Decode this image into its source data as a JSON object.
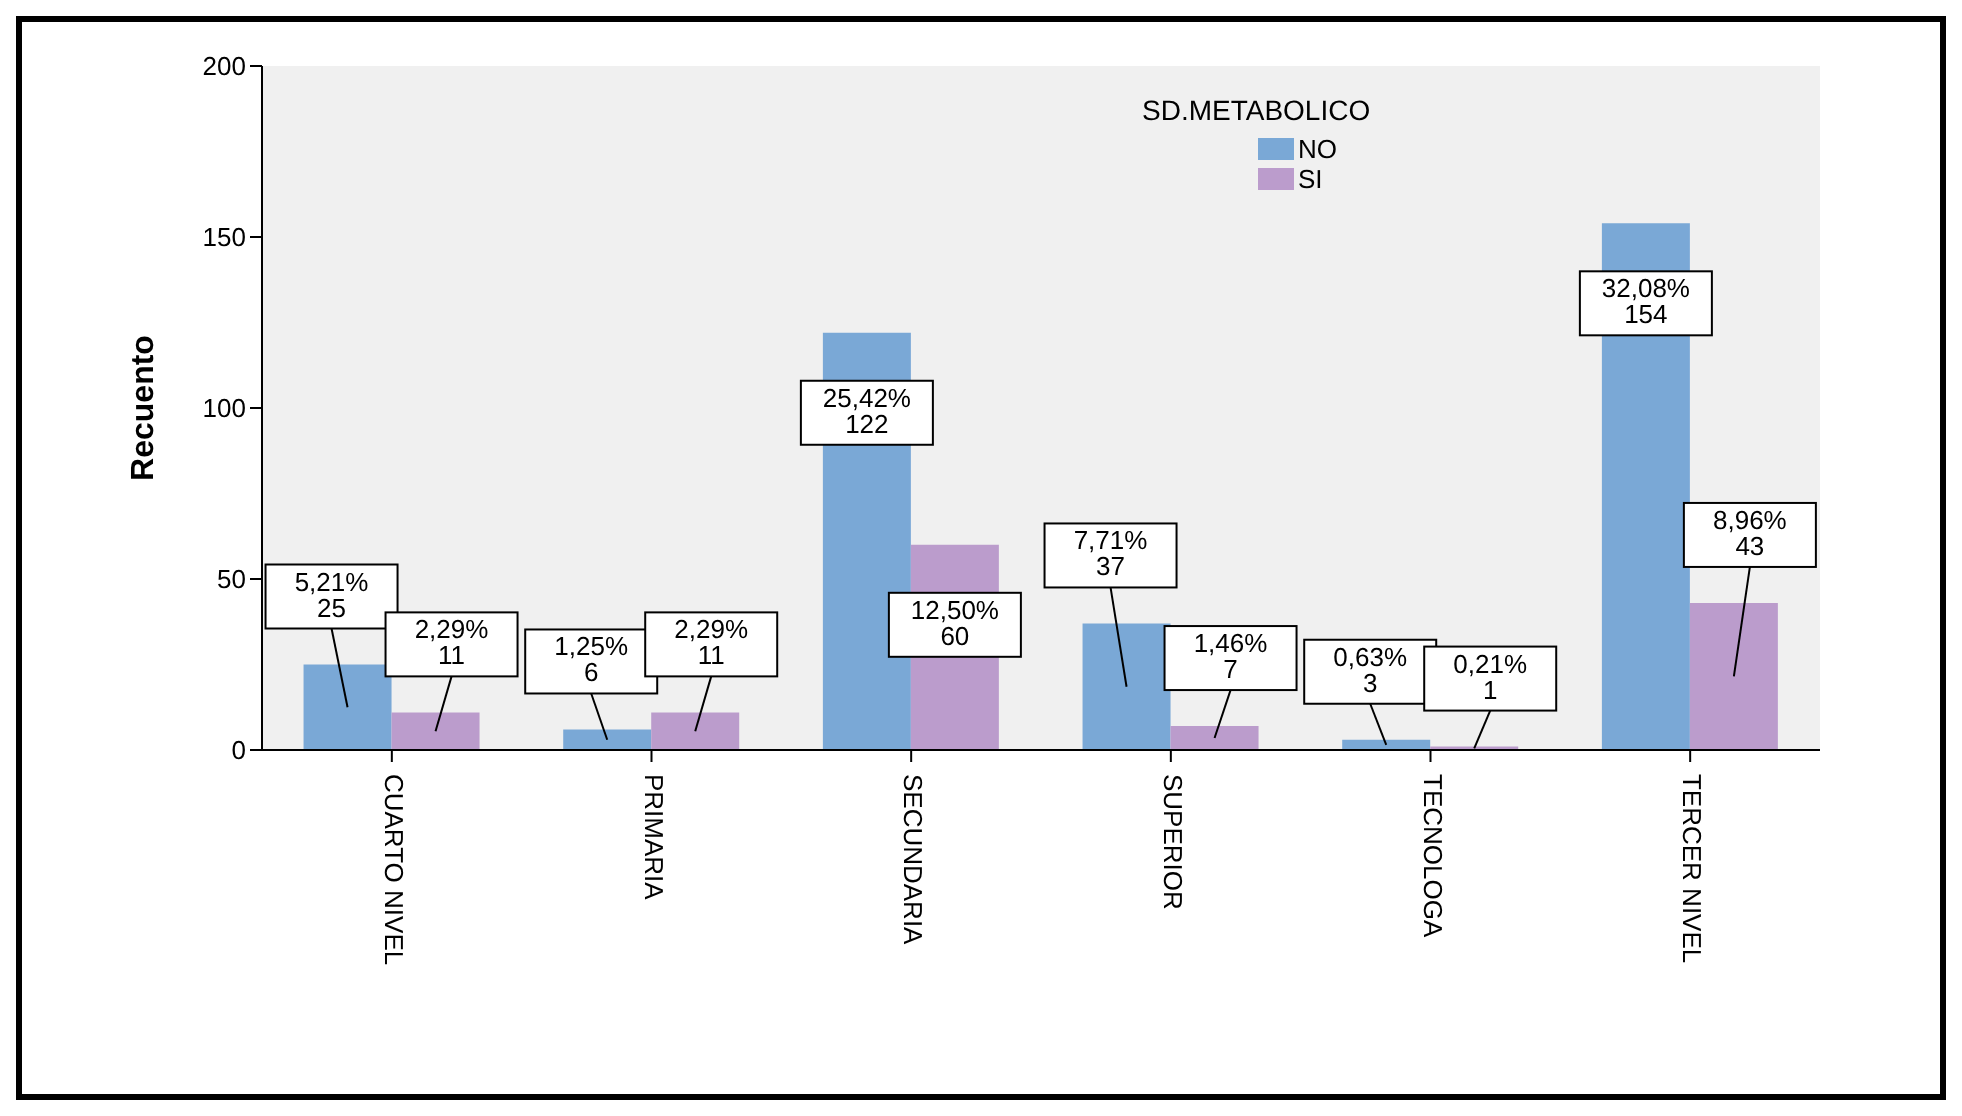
{
  "chart_data": {
    "type": "bar",
    "ylabel": "Recuento",
    "legend_title": "SD.METABOLICO",
    "categories": [
      "CUARTO NIVEL",
      "PRIMARIA",
      "SECUNDARIA",
      "SUPERIOR",
      "TECNOLOGA",
      "TERCER NIVEL"
    ],
    "series": [
      {
        "name": "NO",
        "color": "#7aa8d6",
        "values": [
          25,
          6,
          122,
          37,
          3,
          154
        ],
        "value_labels": [
          "5,21%\n25",
          "1,25%\n6",
          "25,42%\n122",
          "7,71%\n37",
          "0,63%\n3",
          "32,08%\n154"
        ]
      },
      {
        "name": "SI",
        "color": "#bb9ccc",
        "values": [
          11,
          11,
          60,
          7,
          1,
          43
        ],
        "value_labels": [
          "2,29%\n11",
          "2,29%\n11",
          "12,50%\n60",
          "1,46%\n7",
          "0,21%\n1",
          "8,96%\n43"
        ]
      }
    ],
    "ylim": [
      0,
      200
    ],
    "yticks": [
      0,
      50,
      100,
      150,
      200
    ],
    "grid": false,
    "legend": "top"
  }
}
